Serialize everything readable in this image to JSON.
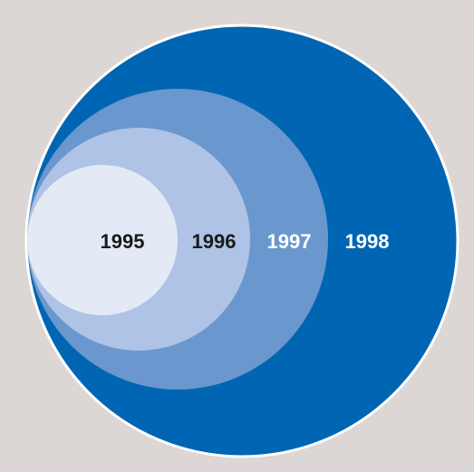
{
  "nodes": [
    {
      "label": "1995"
    },
    {
      "label": "1996"
    },
    {
      "label": "1997"
    },
    {
      "label": "1998"
    }
  ]
}
